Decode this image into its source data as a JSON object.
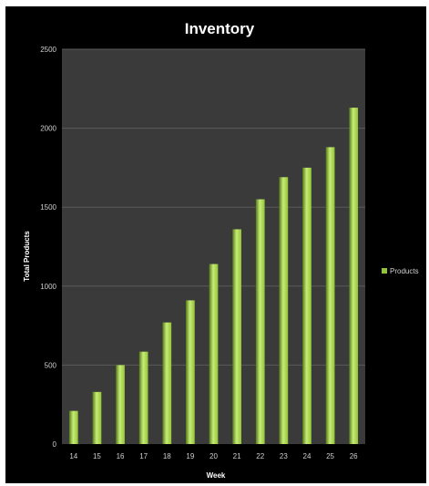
{
  "chart_data": {
    "type": "bar",
    "title": "Inventory",
    "xlabel": "Week",
    "ylabel": "Total Products",
    "categories": [
      "14",
      "15",
      "16",
      "17",
      "18",
      "19",
      "20",
      "21",
      "22",
      "23",
      "24",
      "25",
      "26"
    ],
    "series": [
      {
        "name": "Products",
        "values": [
          210,
          330,
          500,
          585,
          770,
          910,
          1140,
          1360,
          1550,
          1690,
          1750,
          1880,
          2130
        ]
      }
    ],
    "yticks": [
      "0",
      "500",
      "1000",
      "1500",
      "2000",
      "2500"
    ],
    "ylim": [
      0,
      2500
    ],
    "grid": true,
    "legend_position": "right",
    "colors": {
      "background": "#000000",
      "plot_area": "#3a3a3a",
      "bar": "#93c437",
      "bar_highlight": "#c8ec78",
      "bar_shadow": "#557a18",
      "gridline": "#5a5a5a"
    }
  }
}
